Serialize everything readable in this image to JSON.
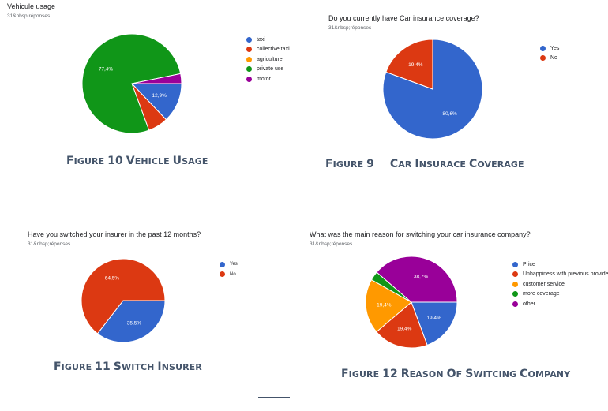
{
  "chart_data": [
    {
      "type": "pie",
      "title": "Vehicule usage",
      "subtitle": "31&nbsp;réponses",
      "categories": [
        "taxi",
        "collective taxi",
        "agriculture",
        "private use",
        "motor"
      ],
      "values": [
        12.9,
        6.5,
        0,
        77.4,
        3.2
      ],
      "slice_labels": [
        "12,9%",
        "",
        "",
        "77,4%",
        ""
      ],
      "colors": [
        "#3366cc",
        "#dc3912",
        "#ff9900",
        "#109618",
        "#990099"
      ],
      "legend": "right",
      "caption": {
        "fig": "Figure 10",
        "name": "Vehicle usage"
      }
    },
    {
      "type": "pie",
      "title": "Do you currently have Car insurance coverage?",
      "subtitle": "31&nbsp;réponses",
      "categories": [
        "Yes",
        "No"
      ],
      "values": [
        80.6,
        19.4
      ],
      "slice_labels": [
        "80,6%",
        "19,4%"
      ],
      "colors": [
        "#3366cc",
        "#dc3912"
      ],
      "legend": "right",
      "caption": {
        "fig": "Figure 9",
        "name": "Car insurace coverage"
      }
    },
    {
      "type": "pie",
      "title": "Have you switched your insurer in the past 12 months?",
      "subtitle": "31&nbsp;réponses",
      "categories": [
        "Yes",
        "No"
      ],
      "values": [
        35.5,
        64.5
      ],
      "slice_labels": [
        "35,5%",
        "64,5%"
      ],
      "colors": [
        "#3366cc",
        "#dc3912"
      ],
      "legend": "right",
      "caption": {
        "fig": "Figure 11",
        "name": "switch insurer"
      }
    },
    {
      "type": "pie",
      "title": "What was the main reason for switching your car insurance company?",
      "subtitle": "31&nbsp;réponses",
      "categories": [
        "Price",
        "Unhappiness with previous provider",
        "customer service",
        "more coverage",
        "other"
      ],
      "values": [
        19.4,
        19.4,
        19.4,
        3.2,
        38.7
      ],
      "slice_labels": [
        "19,4%",
        "19,4%",
        "19,4%",
        "",
        "38,7%"
      ],
      "colors": [
        "#3366cc",
        "#dc3912",
        "#ff9900",
        "#109618",
        "#990099"
      ],
      "legend": "right",
      "caption": {
        "fig": "Figure 12",
        "name": "reason of switcing company"
      }
    }
  ]
}
